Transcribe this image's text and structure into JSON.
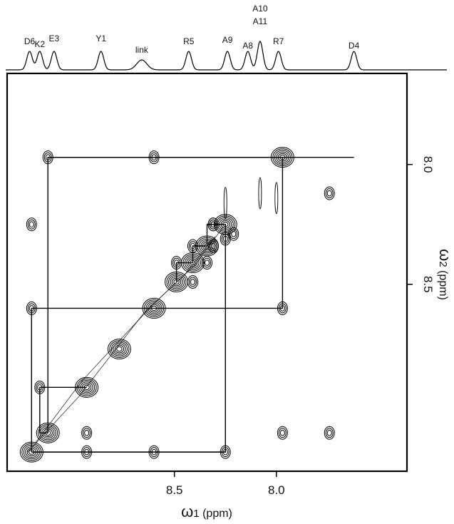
{
  "chart_data": {
    "type": "contour",
    "x_axis": {
      "label_symbol": "ω",
      "label_sub": "1",
      "label_unit": " (ppm)",
      "ticks": [
        8.5,
        8.0
      ],
      "tick_labels": [
        "8.5",
        "8.0"
      ],
      "range": [
        9.32,
        7.36
      ],
      "reversed": true
    },
    "y_axis": {
      "label_symbol": "ω",
      "label_sub": "2",
      "label_unit": " (ppm)",
      "ticks": [
        8.0,
        8.5
      ],
      "tick_labels": [
        "8.0",
        "8.5"
      ],
      "range": [
        7.62,
        9.28
      ],
      "reversed": true
    },
    "residue_labels": [
      {
        "label": "D6",
        "shift": 9.21
      },
      {
        "label": "K2",
        "shift": 9.16
      },
      {
        "label": "E3",
        "shift": 9.09
      },
      {
        "label": "Y1",
        "shift": 8.86
      },
      {
        "label": "link",
        "shift": 8.66
      },
      {
        "label": "R5",
        "shift": 8.43
      },
      {
        "label": "A9",
        "shift": 8.24
      },
      {
        "label": "A8",
        "shift": 8.14
      },
      {
        "label": "A10",
        "shift": 8.08
      },
      {
        "label": "A11",
        "shift": 8.08
      },
      {
        "label": "R7",
        "shift": 7.99
      },
      {
        "label": "D4",
        "shift": 7.62
      }
    ],
    "diagonal_peaks": [
      {
        "label": "D6",
        "shift": 9.2
      },
      {
        "label": "E3",
        "shift": 9.12
      },
      {
        "label": "Y1",
        "shift": 8.93
      },
      {
        "label": "link",
        "shift": 8.77
      },
      {
        "label": "R5",
        "shift": 8.6
      },
      {
        "label": "A9",
        "shift": 8.49
      },
      {
        "label": "A8",
        "shift": 8.41
      },
      {
        "label": "A10/A11",
        "shift": 8.34
      },
      {
        "label": "R7",
        "shift": 8.25
      },
      {
        "label": "D4",
        "shift": 7.97
      }
    ],
    "cross_peaks": [
      {
        "x": 9.12,
        "y": 7.97
      },
      {
        "x": 8.6,
        "y": 7.97
      },
      {
        "x": 9.2,
        "y": 8.25
      },
      {
        "x": 8.31,
        "y": 8.25
      },
      {
        "x": 8.31,
        "y": 8.34
      },
      {
        "x": 8.41,
        "y": 8.34
      },
      {
        "x": 8.34,
        "y": 8.41
      },
      {
        "x": 8.49,
        "y": 8.41
      },
      {
        "x": 8.41,
        "y": 8.49
      },
      {
        "x": 9.2,
        "y": 8.6
      },
      {
        "x": 7.97,
        "y": 8.6
      },
      {
        "x": 9.16,
        "y": 8.93
      },
      {
        "x": 8.93,
        "y": 9.12
      },
      {
        "x": 7.97,
        "y": 9.12
      },
      {
        "x": 8.93,
        "y": 9.2
      },
      {
        "x": 8.6,
        "y": 9.2
      },
      {
        "x": 8.25,
        "y": 9.2
      },
      {
        "x": 8.25,
        "y": 8.31
      },
      {
        "x": 8.31,
        "y": 8.25
      },
      {
        "x": 8.21,
        "y": 8.29
      },
      {
        "x": 7.74,
        "y": 8.12
      },
      {
        "x": 7.74,
        "y": 9.12
      }
    ],
    "connectivity_path": [
      [
        9.2,
        9.2
      ],
      [
        9.2,
        8.6
      ],
      [
        8.6,
        8.6
      ],
      [
        7.97,
        8.6
      ],
      [
        7.97,
        7.97
      ],
      [
        9.12,
        7.97
      ],
      [
        9.12,
        9.12
      ],
      [
        9.16,
        9.12
      ],
      [
        9.16,
        8.93
      ],
      [
        8.93,
        8.93
      ]
    ],
    "connectivity_path_2": [
      [
        9.2,
        9.2
      ],
      [
        8.25,
        9.2
      ],
      [
        8.25,
        8.25
      ],
      [
        8.34,
        8.25
      ],
      [
        8.34,
        8.34
      ],
      [
        8.41,
        8.34
      ],
      [
        8.41,
        8.41
      ],
      [
        8.49,
        8.41
      ],
      [
        8.49,
        8.49
      ]
    ]
  }
}
